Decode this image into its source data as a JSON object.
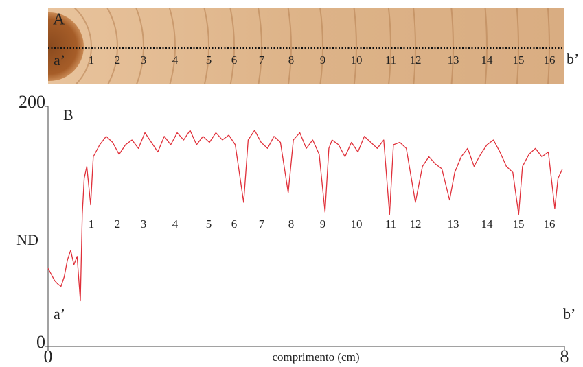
{
  "panel_a": {
    "label": "A",
    "start_label": "a’",
    "end_label": "b’"
  },
  "chart_data": {
    "type": "line",
    "panel_label": "B",
    "y_label": "ND",
    "x_label": "comprimento (cm)",
    "start_label": "a’",
    "end_label": "b’",
    "ring_labels": [
      "1",
      "2",
      "3",
      "4",
      "5",
      "6",
      "7",
      "8",
      "9",
      "10",
      "11",
      "12",
      "13",
      "14",
      "15",
      "16"
    ],
    "color": "#e0303a",
    "xlim": [
      0,
      8
    ],
    "xticks": [
      0,
      8
    ],
    "ylim": [
      0,
      200
    ],
    "yticks": [
      0,
      200
    ],
    "x": [
      0,
      0.05,
      0.1,
      0.15,
      0.2,
      0.25,
      0.3,
      0.35,
      0.4,
      0.45,
      0.5,
      0.53,
      0.56,
      0.6,
      0.66,
      0.7,
      0.8,
      0.9,
      1.0,
      1.1,
      1.2,
      1.3,
      1.4,
      1.5,
      1.6,
      1.7,
      1.8,
      1.9,
      2.0,
      2.1,
      2.2,
      2.3,
      2.4,
      2.5,
      2.6,
      2.7,
      2.8,
      2.9,
      3.03,
      3.1,
      3.2,
      3.3,
      3.4,
      3.5,
      3.6,
      3.72,
      3.8,
      3.9,
      4.0,
      4.1,
      4.2,
      4.29,
      4.35,
      4.4,
      4.5,
      4.6,
      4.7,
      4.8,
      4.9,
      5.0,
      5.1,
      5.2,
      5.29,
      5.35,
      5.45,
      5.55,
      5.69,
      5.8,
      5.9,
      6.0,
      6.1,
      6.22,
      6.3,
      6.4,
      6.5,
      6.6,
      6.7,
      6.8,
      6.9,
      7.0,
      7.1,
      7.2,
      7.29,
      7.35,
      7.45,
      7.55,
      7.65,
      7.75,
      7.85,
      7.9,
      7.97
    ],
    "values": [
      65,
      60,
      55,
      52,
      50,
      58,
      72,
      80,
      68,
      75,
      38,
      110,
      140,
      150,
      118,
      158,
      168,
      175,
      170,
      160,
      168,
      172,
      165,
      178,
      170,
      162,
      175,
      168,
      178,
      172,
      180,
      168,
      175,
      170,
      178,
      172,
      176,
      168,
      120,
      172,
      180,
      170,
      165,
      175,
      170,
      128,
      172,
      178,
      165,
      172,
      160,
      112,
      165,
      172,
      168,
      158,
      170,
      162,
      175,
      170,
      165,
      172,
      110,
      168,
      170,
      165,
      120,
      150,
      158,
      152,
      148,
      122,
      145,
      158,
      165,
      150,
      160,
      168,
      172,
      162,
      150,
      145,
      110,
      150,
      160,
      165,
      158,
      162,
      115,
      140,
      148
    ]
  }
}
